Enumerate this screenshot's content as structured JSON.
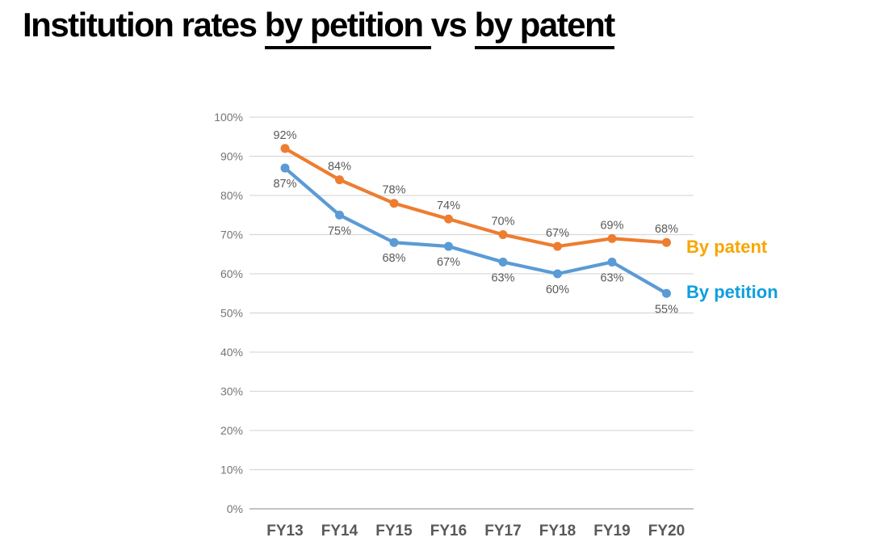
{
  "title": {
    "part1": "Institution rates ",
    "part2": "by petition ",
    "part3": "vs ",
    "part4": "by patent"
  },
  "chart_data": {
    "type": "line",
    "categories": [
      "FY13",
      "FY14",
      "FY15",
      "FY16",
      "FY17",
      "FY18",
      "FY19",
      "FY20"
    ],
    "series": [
      {
        "name": "By patent",
        "values": [
          92,
          84,
          78,
          74,
          70,
          67,
          69,
          68
        ],
        "labels": [
          "92%",
          "84%",
          "78%",
          "74%",
          "70%",
          "67%",
          "69%",
          "68%"
        ],
        "color": "#ED7D31",
        "legend_text_color": "#F7A600",
        "label_position": "above"
      },
      {
        "name": "By petition",
        "values": [
          87,
          75,
          68,
          67,
          63,
          60,
          63,
          55
        ],
        "labels": [
          "87%",
          "75%",
          "68%",
          "67%",
          "63%",
          "60%",
          "63%",
          "55%"
        ],
        "color": "#5B9BD5",
        "legend_text_color": "#0E9FDE",
        "label_position": "below"
      }
    ],
    "y_ticks": [
      "0%",
      "10%",
      "20%",
      "30%",
      "40%",
      "50%",
      "60%",
      "70%",
      "80%",
      "90%",
      "100%"
    ],
    "ylim": [
      0,
      100
    ],
    "y_tick_step": 10,
    "grid": true,
    "legend_position": "right",
    "grid_color": "#D9D9D9",
    "grid_baseline_color": "#C3C3C3",
    "tick_text_color": "#757575",
    "category_text_color": "#595959",
    "data_label_color": "#595959"
  }
}
